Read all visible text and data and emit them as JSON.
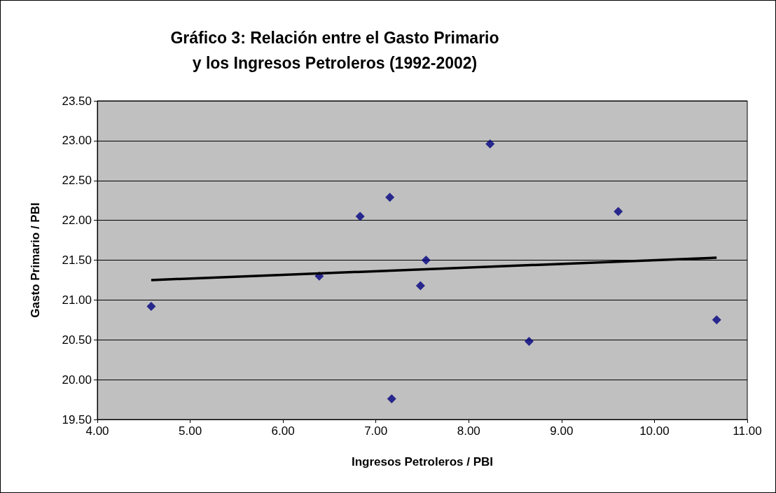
{
  "chart_data": {
    "type": "scatter",
    "title": "Gráfico 3: Relación entre el Gasto Primario\ny los Ingresos Petroleros (1992-2002)",
    "xlabel": "Ingresos Petroleros / PBI",
    "ylabel": "Gasto Primario / PBI",
    "x": [
      4.58,
      6.39,
      6.83,
      7.15,
      8.23,
      7.54,
      7.48,
      7.17,
      8.65,
      9.61,
      10.67
    ],
    "series": [
      {
        "color": "#000080",
        "marker": "diamond",
        "values": [
          20.92,
          21.3,
          22.05,
          22.29,
          22.96,
          21.5,
          21.18,
          19.76,
          20.48,
          22.11,
          20.75
        ]
      },
      {
        "type": "line",
        "color": "#000000",
        "marker": "none",
        "x": [
          4.58,
          10.67
        ],
        "values": [
          21.25,
          21.53
        ]
      }
    ],
    "xlim": [
      4,
      11
    ],
    "ylim": [
      19.5,
      23.5
    ],
    "xticks": [
      {
        "value": 4,
        "label": "4.00"
      },
      {
        "value": 5,
        "label": "5.00"
      },
      {
        "value": 6,
        "label": "6.00"
      },
      {
        "value": 7,
        "label": "7.00"
      },
      {
        "value": 8,
        "label": "8.00"
      },
      {
        "value": 9,
        "label": "9.00"
      },
      {
        "value": 10,
        "label": "10.00"
      },
      {
        "value": 11,
        "label": "11.00"
      }
    ],
    "yticks": [
      {
        "value": 19.5,
        "label": "19.50"
      },
      {
        "value": 20,
        "label": "20.00"
      },
      {
        "value": 20.5,
        "label": "20.50"
      },
      {
        "value": 21,
        "label": "21.00"
      },
      {
        "value": 21.5,
        "label": "21.50"
      },
      {
        "value": 22,
        "label": "22.00"
      },
      {
        "value": 22.5,
        "label": "22.50"
      },
      {
        "value": 23,
        "label": "23.00"
      },
      {
        "value": 23.5,
        "label": "23.50"
      }
    ],
    "grid": "y"
  }
}
